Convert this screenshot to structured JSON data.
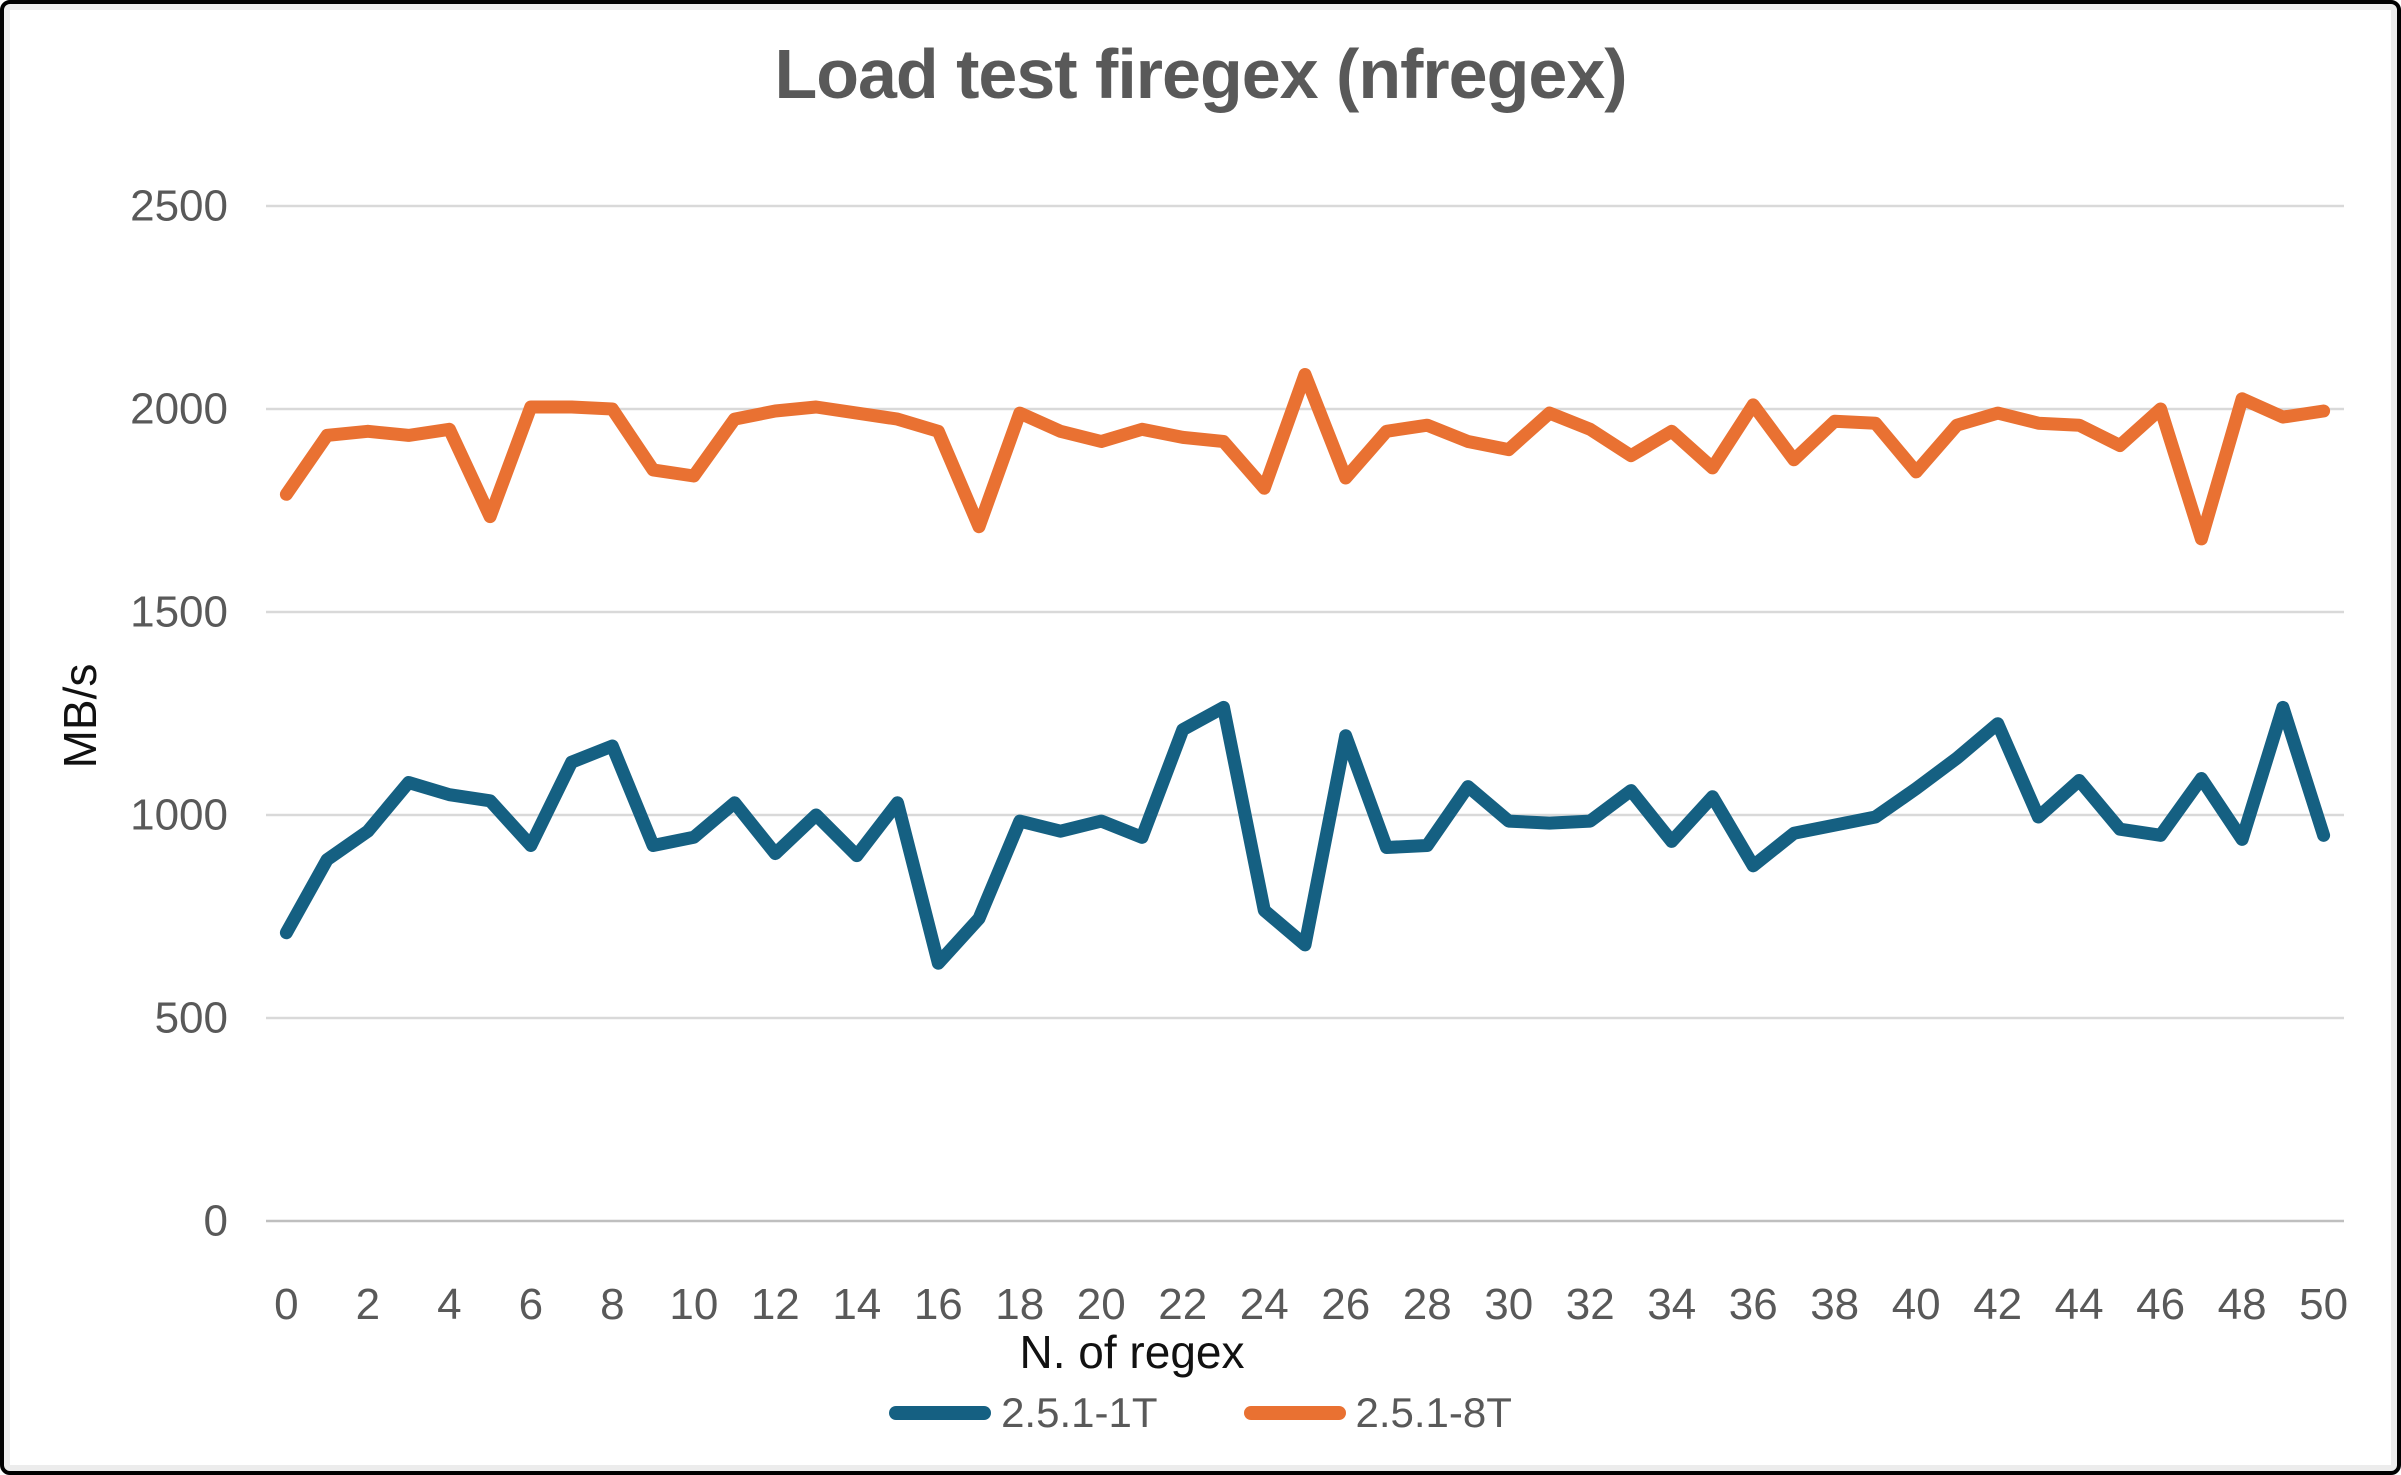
{
  "title": "Load test firegex (nfregex)",
  "chart_data": {
    "type": "line",
    "title": "Load test firegex (nfregex)",
    "xlabel": "N. of regex",
    "ylabel": "MB/s",
    "x": [
      0,
      1,
      2,
      3,
      4,
      5,
      6,
      7,
      8,
      9,
      10,
      11,
      12,
      13,
      14,
      15,
      16,
      17,
      18,
      19,
      20,
      21,
      22,
      23,
      24,
      25,
      26,
      27,
      28,
      29,
      30,
      31,
      32,
      33,
      34,
      35,
      36,
      37,
      38,
      39,
      40,
      41,
      42,
      43,
      44,
      45,
      46,
      47,
      48,
      49,
      50
    ],
    "series": [
      {
        "name": "2.5.1-1T",
        "color": "#156082",
        "values": [
          710,
          890,
          960,
          1080,
          1050,
          1035,
          925,
          1130,
          1170,
          925,
          945,
          1030,
          905,
          1000,
          900,
          1030,
          635,
          745,
          985,
          960,
          985,
          945,
          1210,
          1265,
          765,
          680,
          1195,
          920,
          925,
          1070,
          985,
          980,
          985,
          1060,
          935,
          1045,
          875,
          955,
          975,
          995,
          1065,
          1140,
          1225,
          995,
          1085,
          965,
          950,
          1090,
          940,
          1265,
          950
        ]
      },
      {
        "name": "2.5.1-8T",
        "color": "#E97132",
        "values": [
          1790,
          1935,
          1945,
          1935,
          1950,
          1735,
          2005,
          2005,
          2000,
          1850,
          1835,
          1975,
          1995,
          2005,
          1990,
          1975,
          1945,
          1710,
          1990,
          1945,
          1920,
          1950,
          1930,
          1920,
          1805,
          2085,
          1830,
          1945,
          1960,
          1920,
          1900,
          1990,
          1950,
          1885,
          1945,
          1855,
          2010,
          1875,
          1970,
          1965,
          1845,
          1960,
          1990,
          1965,
          1960,
          1910,
          2000,
          1680,
          2025,
          1980,
          1995
        ]
      }
    ],
    "ylim": [
      0,
      2500
    ],
    "ytick_step": 500,
    "xtick_step": 2,
    "grid": true,
    "legend_position": "bottom"
  },
  "colors": {
    "title_text": "#595959",
    "tick_text": "#595959",
    "axis_title_text": "#111111",
    "gridline": "#D9D9D9",
    "axis_line": "#BFBFBF",
    "frame_border": "#000000",
    "background": "#FFFFFF"
  }
}
